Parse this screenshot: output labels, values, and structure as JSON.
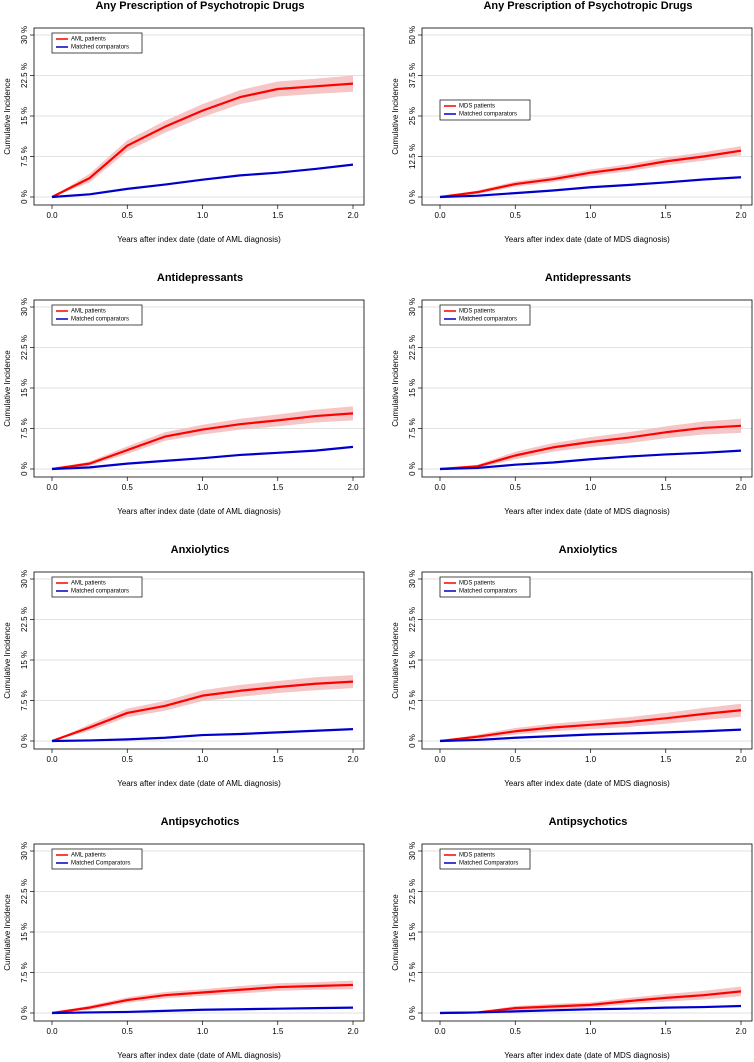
{
  "chart_data": [
    {
      "type": "line",
      "title": "Any Prescription of Psychotropic Drugs",
      "xlabel": "Years after index date (date of AML diagnosis)",
      "ylabel": "Cumulative Incidence",
      "x": [
        0,
        0.25,
        0.5,
        0.75,
        1,
        1.25,
        1.5,
        1.75,
        2
      ],
      "xlim": [
        0,
        2
      ],
      "xticks": [
        {
          "value": 0,
          "label": "0.0"
        },
        {
          "value": 0.5,
          "label": "0.5"
        },
        {
          "value": 1,
          "label": "1.0"
        },
        {
          "value": 1.5,
          "label": "1.5"
        },
        {
          "value": 2,
          "label": "2.0"
        }
      ],
      "ylim": [
        0,
        30
      ],
      "yticks": [
        {
          "value": 0,
          "label": "0 %"
        },
        {
          "value": 7.5,
          "label": "7.5 %"
        },
        {
          "value": 15,
          "label": "15 %"
        },
        {
          "value": 22.5,
          "label": "22.5 %"
        },
        {
          "value": 30,
          "label": "30 %"
        }
      ],
      "grid": true,
      "legend": "top-left",
      "series": [
        {
          "name": "AML patients",
          "color": "#ff0000",
          "band_color": "#f4b6b6",
          "values": [
            0,
            3.5,
            9.5,
            13,
            16,
            18.5,
            20,
            20.5,
            21
          ],
          "lower": [
            0,
            2.7,
            8.5,
            11.9,
            14.8,
            17.2,
            18.6,
            19.1,
            19.5
          ],
          "upper": [
            0,
            4.3,
            10.5,
            14.1,
            17.2,
            19.8,
            21.4,
            21.9,
            22.5
          ]
        },
        {
          "name": "Matched comparators",
          "color": "#0000cc",
          "values": [
            0,
            0.5,
            1.5,
            2.3,
            3.2,
            4,
            4.5,
            5.2,
            6
          ]
        }
      ]
    },
    {
      "type": "line",
      "title": "Any Prescription of Psychotropic Drugs",
      "xlabel": "Years after index date (date of MDS diagnosis)",
      "ylabel": "Cumulative Incidence",
      "x": [
        0,
        0.25,
        0.5,
        0.75,
        1,
        1.25,
        1.5,
        1.75,
        2
      ],
      "xlim": [
        0,
        2
      ],
      "xticks": [
        {
          "value": 0,
          "label": "0.0"
        },
        {
          "value": 0.5,
          "label": "0.5"
        },
        {
          "value": 1,
          "label": "1.0"
        },
        {
          "value": 1.5,
          "label": "1.5"
        },
        {
          "value": 2,
          "label": "2.0"
        }
      ],
      "ylim": [
        0,
        50
      ],
      "yticks": [
        {
          "value": 0,
          "label": "0 %"
        },
        {
          "value": 12.5,
          "label": "12.5 %"
        },
        {
          "value": 25,
          "label": "25 %"
        },
        {
          "value": 37.5,
          "label": "37.5 %"
        },
        {
          "value": 50,
          "label": "50 %"
        }
      ],
      "grid": true,
      "legend": "center-left",
      "series": [
        {
          "name": "MDS patients",
          "color": "#ff0000",
          "band_color": "#f4b6b6",
          "values": [
            0,
            1.5,
            4,
            5.5,
            7.5,
            9,
            11,
            12.5,
            14.3
          ],
          "lower": [
            0,
            1,
            3.2,
            4.6,
            6.5,
            7.9,
            9.8,
            11.2,
            12.9
          ],
          "upper": [
            0,
            2,
            4.8,
            6.4,
            8.5,
            10.1,
            12.2,
            13.8,
            15.7
          ]
        },
        {
          "name": "Matched comparators",
          "color": "#0000cc",
          "values": [
            0,
            0.4,
            1.2,
            2,
            3,
            3.7,
            4.5,
            5.4,
            6.1
          ]
        }
      ]
    },
    {
      "type": "line",
      "title": "Antidepressants",
      "xlabel": "Years after index date (date of AML diagnosis)",
      "ylabel": "Cumulative Incidence",
      "x": [
        0,
        0.25,
        0.5,
        0.75,
        1,
        1.25,
        1.5,
        1.75,
        2
      ],
      "xlim": [
        0,
        2
      ],
      "xticks": [
        {
          "value": 0,
          "label": "0.0"
        },
        {
          "value": 0.5,
          "label": "0.5"
        },
        {
          "value": 1,
          "label": "1.0"
        },
        {
          "value": 1.5,
          "label": "1.5"
        },
        {
          "value": 2,
          "label": "2.0"
        }
      ],
      "ylim": [
        0,
        30
      ],
      "yticks": [
        {
          "value": 0,
          "label": "0 %"
        },
        {
          "value": 7.5,
          "label": "7.5 %"
        },
        {
          "value": 15,
          "label": "15 %"
        },
        {
          "value": 22.5,
          "label": "22.5 %"
        },
        {
          "value": 30,
          "label": "30 %"
        }
      ],
      "grid": true,
      "legend": "top-left",
      "series": [
        {
          "name": "AML patients",
          "color": "#ff0000",
          "band_color": "#f4b6b6",
          "values": [
            0,
            1,
            3.5,
            6,
            7.3,
            8.3,
            9,
            9.8,
            10.3
          ],
          "lower": [
            0,
            0.6,
            2.8,
            5.2,
            6.4,
            7.3,
            7.9,
            8.6,
            9.0
          ],
          "upper": [
            0,
            1.4,
            4.2,
            6.8,
            8.2,
            9.3,
            10.1,
            11,
            11.6
          ]
        },
        {
          "name": "Matched comparators",
          "color": "#0000cc",
          "values": [
            0,
            0.3,
            1,
            1.5,
            2,
            2.6,
            3,
            3.4,
            4.1
          ]
        }
      ]
    },
    {
      "type": "line",
      "title": "Antidepressants",
      "xlabel": "Years after index date (date of MDS diagnosis)",
      "ylabel": "Cumulative Incidence",
      "x": [
        0,
        0.25,
        0.5,
        0.75,
        1,
        1.25,
        1.5,
        1.75,
        2
      ],
      "xlim": [
        0,
        2
      ],
      "xticks": [
        {
          "value": 0,
          "label": "0.0"
        },
        {
          "value": 0.5,
          "label": "0.5"
        },
        {
          "value": 1,
          "label": "1.0"
        },
        {
          "value": 1.5,
          "label": "1.5"
        },
        {
          "value": 2,
          "label": "2.0"
        }
      ],
      "ylim": [
        0,
        30
      ],
      "yticks": [
        {
          "value": 0,
          "label": "0 %"
        },
        {
          "value": 7.5,
          "label": "7.5 %"
        },
        {
          "value": 15,
          "label": "15 %"
        },
        {
          "value": 22.5,
          "label": "22.5 %"
        },
        {
          "value": 30,
          "label": "30 %"
        }
      ],
      "grid": true,
      "legend": "top-left",
      "series": [
        {
          "name": "MDS patients",
          "color": "#ff0000",
          "band_color": "#f4b6b6",
          "values": [
            0,
            0.5,
            2.5,
            4,
            5,
            5.8,
            6.8,
            7.6,
            8
          ],
          "lower": [
            0,
            0.2,
            1.8,
            3.2,
            4.1,
            4.8,
            5.7,
            6.4,
            6.7
          ],
          "upper": [
            0,
            0.8,
            3.2,
            4.8,
            5.9,
            6.8,
            7.9,
            8.8,
            9.3
          ]
        },
        {
          "name": "Matched comparators",
          "color": "#0000cc",
          "values": [
            0,
            0.2,
            0.8,
            1.2,
            1.8,
            2.3,
            2.7,
            3,
            3.4
          ]
        }
      ]
    },
    {
      "type": "line",
      "title": "Anxiolytics",
      "xlabel": "Years after index date (date of AML diagnosis)",
      "ylabel": "Cumulative Incidence",
      "x": [
        0,
        0.25,
        0.5,
        0.75,
        1,
        1.25,
        1.5,
        1.75,
        2
      ],
      "xlim": [
        0,
        2
      ],
      "xticks": [
        {
          "value": 0,
          "label": "0.0"
        },
        {
          "value": 0.5,
          "label": "0.5"
        },
        {
          "value": 1,
          "label": "1.0"
        },
        {
          "value": 1.5,
          "label": "1.5"
        },
        {
          "value": 2,
          "label": "2.0"
        }
      ],
      "ylim": [
        0,
        30
      ],
      "yticks": [
        {
          "value": 0,
          "label": "0 %"
        },
        {
          "value": 7.5,
          "label": "7.5 %"
        },
        {
          "value": 15,
          "label": "15 %"
        },
        {
          "value": 22.5,
          "label": "22.5 %"
        },
        {
          "value": 30,
          "label": "30 %"
        }
      ],
      "grid": true,
      "legend": "top-left",
      "series": [
        {
          "name": "AML patients",
          "color": "#ff0000",
          "band_color": "#f4b6b6",
          "values": [
            0,
            2.5,
            5.2,
            6.5,
            8.4,
            9.3,
            10,
            10.6,
            11
          ],
          "lower": [
            0,
            1.9,
            4.4,
            5.6,
            7.4,
            8.2,
            8.9,
            9.4,
            9.8
          ],
          "upper": [
            0,
            3.1,
            6,
            7.4,
            9.4,
            10.4,
            11.1,
            11.8,
            12.2
          ]
        },
        {
          "name": "Matched comparators",
          "color": "#0000cc",
          "values": [
            0,
            0.1,
            0.3,
            0.6,
            1.1,
            1.3,
            1.6,
            1.9,
            2.2
          ]
        }
      ]
    },
    {
      "type": "line",
      "title": "Anxiolytics",
      "xlabel": "Years after index date (date of MDS diagnosis)",
      "ylabel": "Cumulative Incidence",
      "x": [
        0,
        0.25,
        0.5,
        0.75,
        1,
        1.25,
        1.5,
        1.75,
        2
      ],
      "xlim": [
        0,
        2
      ],
      "xticks": [
        {
          "value": 0,
          "label": "0.0"
        },
        {
          "value": 0.5,
          "label": "0.5"
        },
        {
          "value": 1,
          "label": "1.0"
        },
        {
          "value": 1.5,
          "label": "1.5"
        },
        {
          "value": 2,
          "label": "2.0"
        }
      ],
      "ylim": [
        0,
        30
      ],
      "yticks": [
        {
          "value": 0,
          "label": "0 %"
        },
        {
          "value": 7.5,
          "label": "7.5 %"
        },
        {
          "value": 15,
          "label": "15 %"
        },
        {
          "value": 22.5,
          "label": "22.5 %"
        },
        {
          "value": 30,
          "label": "30 %"
        }
      ],
      "grid": true,
      "legend": "top-left",
      "series": [
        {
          "name": "MDS patients",
          "color": "#ff0000",
          "band_color": "#f4b6b6",
          "values": [
            0,
            0.8,
            1.8,
            2.5,
            3,
            3.5,
            4.2,
            5,
            5.7
          ],
          "lower": [
            0,
            0.4,
            1.2,
            1.8,
            2.2,
            2.6,
            3.2,
            3.9,
            4.5
          ],
          "upper": [
            0,
            1.2,
            2.4,
            3.2,
            3.8,
            4.4,
            5.2,
            6.1,
            6.9
          ]
        },
        {
          "name": "Matched comparators",
          "color": "#0000cc",
          "values": [
            0,
            0.2,
            0.6,
            0.9,
            1.2,
            1.4,
            1.6,
            1.8,
            2.1
          ]
        }
      ]
    },
    {
      "type": "line",
      "title": "Antipsychotics",
      "xlabel": "Years after index date (date of AML diagnosis)",
      "ylabel": "Cumulative Incidence",
      "x": [
        0,
        0.25,
        0.5,
        0.75,
        1,
        1.25,
        1.5,
        1.75,
        2
      ],
      "xlim": [
        0,
        2
      ],
      "xticks": [
        {
          "value": 0,
          "label": "0.0"
        },
        {
          "value": 0.5,
          "label": "0.5"
        },
        {
          "value": 1,
          "label": "1.0"
        },
        {
          "value": 1.5,
          "label": "1.5"
        },
        {
          "value": 2,
          "label": "2.0"
        }
      ],
      "ylim": [
        0,
        30
      ],
      "yticks": [
        {
          "value": 0,
          "label": "0 %"
        },
        {
          "value": 7.5,
          "label": "7.5 %"
        },
        {
          "value": 15,
          "label": "15 %"
        },
        {
          "value": 22.5,
          "label": "22.5 %"
        },
        {
          "value": 30,
          "label": "30 %"
        }
      ],
      "grid": true,
      "legend": "top-left",
      "series": [
        {
          "name": "AML patients",
          "color": "#ff0000",
          "band_color": "#f4b6b6",
          "values": [
            0,
            1,
            2.4,
            3.3,
            3.8,
            4.3,
            4.8,
            5,
            5.2
          ],
          "lower": [
            0,
            0.6,
            1.9,
            2.7,
            3.2,
            3.6,
            4.1,
            4.3,
            4.4
          ],
          "upper": [
            0,
            1.4,
            2.9,
            3.9,
            4.4,
            5,
            5.5,
            5.7,
            6
          ]
        },
        {
          "name": "Matched Comparators",
          "color": "#0000cc",
          "values": [
            0,
            0.1,
            0.2,
            0.4,
            0.6,
            0.7,
            0.8,
            0.9,
            1.0
          ]
        }
      ]
    },
    {
      "type": "line",
      "title": "Antipsychotics",
      "xlabel": "Years after index date (date of MDS diagnosis)",
      "ylabel": "Cumulative Incidence",
      "x": [
        0,
        0.25,
        0.5,
        0.75,
        1,
        1.25,
        1.5,
        1.75,
        2
      ],
      "xlim": [
        0,
        2
      ],
      "xticks": [
        {
          "value": 0,
          "label": "0.0"
        },
        {
          "value": 0.5,
          "label": "0.5"
        },
        {
          "value": 1,
          "label": "1.0"
        },
        {
          "value": 1.5,
          "label": "1.5"
        },
        {
          "value": 2,
          "label": "2.0"
        }
      ],
      "ylim": [
        0,
        30
      ],
      "yticks": [
        {
          "value": 0,
          "label": "0 %"
        },
        {
          "value": 7.5,
          "label": "7.5 %"
        },
        {
          "value": 15,
          "label": "15 %"
        },
        {
          "value": 22.5,
          "label": "22.5 %"
        },
        {
          "value": 30,
          "label": "30 %"
        }
      ],
      "grid": true,
      "legend": "top-left",
      "series": [
        {
          "name": "MDS patients",
          "color": "#ff0000",
          "band_color": "#f4b6b6",
          "values": [
            0,
            0.1,
            0.9,
            1.2,
            1.5,
            2.2,
            2.8,
            3.3,
            4
          ],
          "lower": [
            0,
            0,
            0.5,
            0.7,
            1,
            1.6,
            2.1,
            2.5,
            3.1
          ],
          "upper": [
            0,
            0.2,
            1.3,
            1.7,
            2,
            2.8,
            3.5,
            4.1,
            4.9
          ]
        },
        {
          "name": "Matched Comparators",
          "color": "#0000cc",
          "values": [
            0,
            0.1,
            0.3,
            0.5,
            0.7,
            0.8,
            1,
            1.1,
            1.3
          ]
        }
      ]
    }
  ]
}
